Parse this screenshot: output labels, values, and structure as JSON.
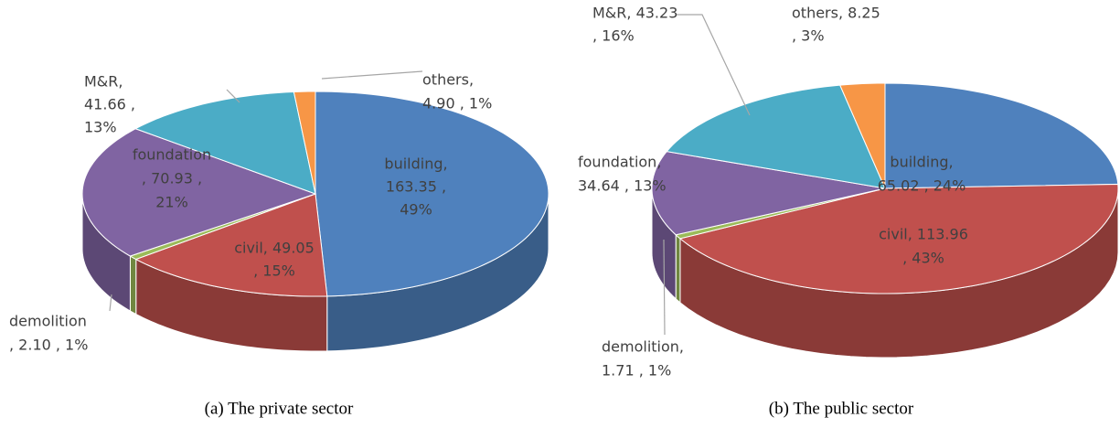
{
  "chart_data": [
    {
      "type": "pie3d",
      "title": "(a)   The private sector",
      "categories": [
        "building",
        "civil",
        "demolition",
        "foundation",
        "M&R",
        "others"
      ],
      "values": [
        163.35,
        49.05,
        2.1,
        70.93,
        41.66,
        4.9
      ],
      "percents": [
        49,
        15,
        1,
        21,
        13,
        1
      ],
      "value_labels": [
        [
          "building,",
          "163.35 ,",
          "49%"
        ],
        [
          "civil, 49.05",
          ", 15%"
        ],
        [
          "demolition",
          ", 2.10 , 1%"
        ],
        [
          "foundation",
          ", 70.93 ,",
          "21%"
        ],
        [
          "M&R,",
          "41.66 ,",
          "13%"
        ],
        [
          "others,",
          "4.90 , 1%"
        ]
      ],
      "colors": [
        "#4f81bd",
        "#c0504d",
        "#9bbb59",
        "#8064a2",
        "#4bacc6",
        "#f79646"
      ]
    },
    {
      "type": "pie3d",
      "title": "(b)   The public sector",
      "categories": [
        "building",
        "civil",
        "demolition",
        "foundation",
        "M&R",
        "others"
      ],
      "values": [
        65.02,
        113.96,
        1.71,
        34.64,
        43.23,
        8.25
      ],
      "percents": [
        24,
        43,
        1,
        13,
        16,
        3
      ],
      "value_labels": [
        [
          "building,",
          "65.02 , 24%"
        ],
        [
          "civil, 113.96",
          ", 43%"
        ],
        [
          "demolition,",
          "1.71 , 1%"
        ],
        [
          "foundation,",
          "34.64 , 13%"
        ],
        [
          "M&R, 43.23",
          ", 16%"
        ],
        [
          "others, 8.25",
          ", 3%"
        ]
      ],
      "colors": [
        "#4f81bd",
        "#c0504d",
        "#9bbb59",
        "#8064a2",
        "#4bacc6",
        "#f79646"
      ]
    }
  ]
}
